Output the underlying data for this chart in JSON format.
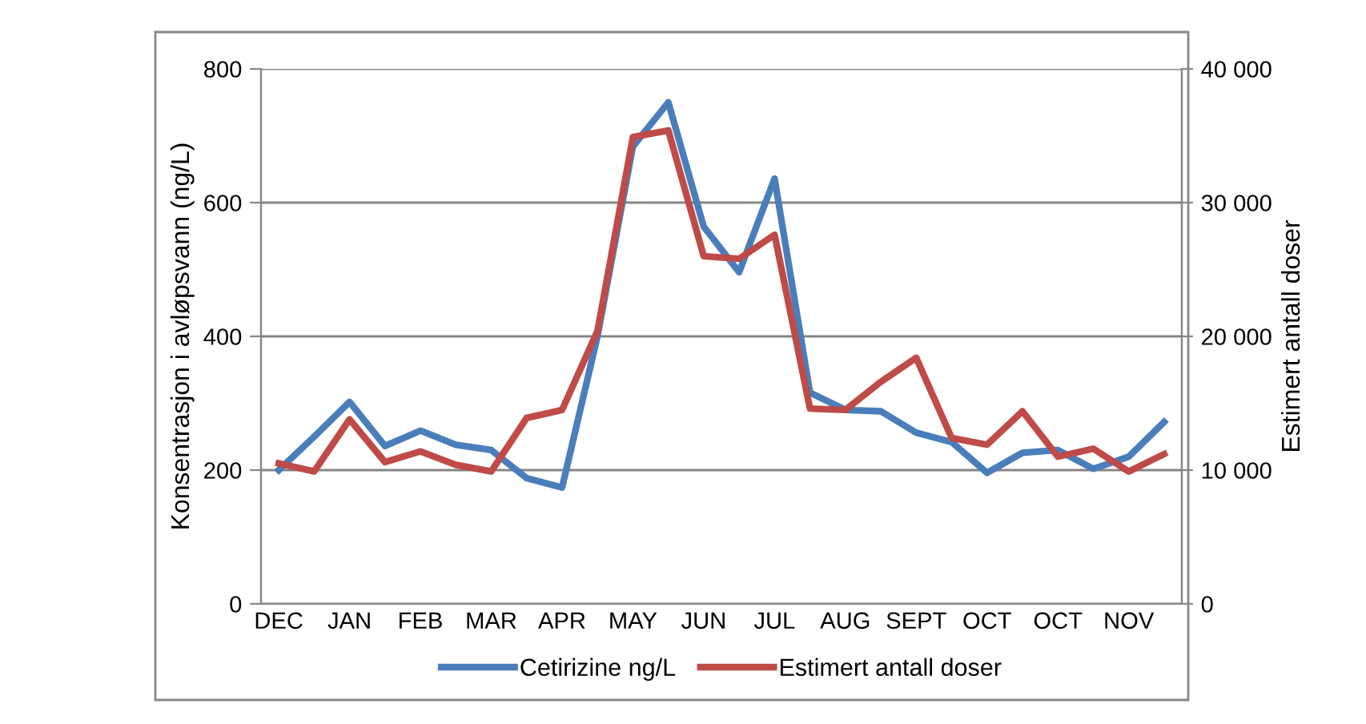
{
  "chart_data": {
    "type": "line",
    "categories": [
      "DEC",
      null,
      "JAN",
      null,
      "FEB",
      null,
      "MAR",
      null,
      "APR",
      null,
      "MAY",
      null,
      "JUN",
      null,
      "JUL",
      null,
      "AUG",
      null,
      "SEPT",
      null,
      "OCT",
      null,
      "OCT",
      null,
      "NOV",
      null
    ],
    "series": [
      {
        "name": "Cetirizine ng/L",
        "color": "#4a7ebb",
        "values": [
          200,
          250,
          302,
          236,
          259,
          238,
          230,
          188,
          174,
          400,
          684,
          750,
          564,
          496,
          636,
          316,
          290,
          288,
          256,
          242,
          196,
          226,
          230,
          202,
          220,
          272
        ]
      },
      {
        "name": "Estimert antall doser",
        "color": "#be4b48",
        "axis": "y2",
        "values": [
          10500,
          9900,
          13800,
          10600,
          11400,
          10400,
          9900,
          13900,
          14500,
          20400,
          34900,
          35400,
          26000,
          25800,
          27600,
          14600,
          14500,
          16600,
          18400,
          12400,
          11900,
          14400,
          11000,
          11600,
          9900,
          11200
        ]
      }
    ],
    "ylabel": "Konsentrasjon i avløpsvann (ng/L)",
    "y2label": "Estimert antall doser",
    "ylim": [
      0,
      800
    ],
    "yticks": [
      0,
      200,
      400,
      600,
      800
    ],
    "y2lim": [
      0,
      40000
    ],
    "y2ticks": [
      0,
      {
        "value": 10000,
        "label": "10 000"
      },
      {
        "value": 20000,
        "label": "20 000"
      },
      {
        "value": 30000,
        "label": "30 000"
      },
      {
        "value": 40000,
        "label": "40 000"
      }
    ],
    "grid": "y",
    "legend": "bottom",
    "marker": "none",
    "line_style": "solid"
  }
}
